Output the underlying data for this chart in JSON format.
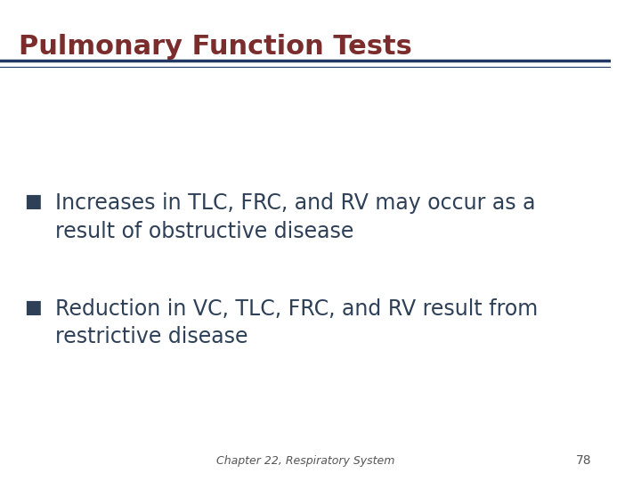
{
  "title": "Pulmonary Function Tests",
  "title_color": "#7B2C2C",
  "title_fontsize": 22,
  "title_bold": true,
  "background_color": "#FFFFFF",
  "line_color_top": "#1F3864",
  "line_color_bottom": "#C0392B",
  "bullet_color": "#2E4057",
  "bullet_char": "§",
  "bullet_points": [
    "Increases in TLC, FRC, and RV may occur as a\nresult of obstructive disease",
    "Reduction in VC, TLC, FRC, and RV result from\nrestrictive disease"
  ],
  "bullet_fontsize": 17,
  "footer_text": "Chapter 22, Respiratory System",
  "page_number": "78",
  "footer_fontsize": 9,
  "footer_color": "#555555"
}
